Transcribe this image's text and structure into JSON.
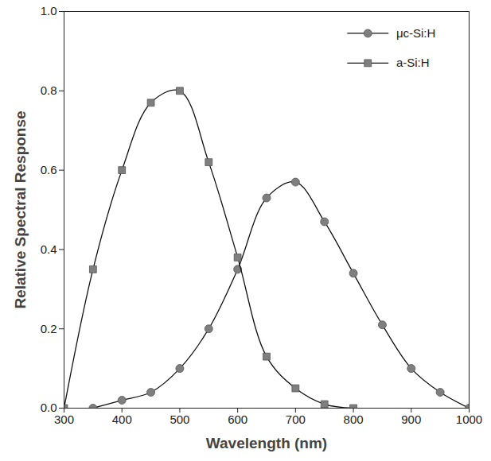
{
  "chart_data": {
    "type": "line",
    "x_label": "Wavelength (nm)",
    "y_label": "Relative Spectral Response",
    "x": [
      300,
      350,
      400,
      450,
      500,
      550,
      600,
      650,
      700,
      750,
      800,
      850,
      900,
      950,
      1000
    ],
    "series": [
      {
        "name": "μc-Si:H",
        "color": "#7f7f7f",
        "marker": "circle",
        "line_style": "solid",
        "values": [
          null,
          0.0,
          0.02,
          0.04,
          0.1,
          0.2,
          0.35,
          0.53,
          0.57,
          0.47,
          0.34,
          0.21,
          0.1,
          0.04,
          0.0
        ]
      },
      {
        "name": "a-Si:H",
        "color": "#7f7f7f",
        "marker": "square",
        "line_style": "solid",
        "values": [
          0.0,
          0.35,
          0.6,
          0.77,
          0.8,
          0.62,
          0.38,
          0.13,
          0.05,
          0.01,
          0.0,
          null,
          null,
          null,
          null
        ]
      }
    ],
    "xlim": [
      300,
      1000
    ],
    "xticks": [
      300,
      400,
      500,
      600,
      700,
      800,
      900,
      1000
    ],
    "ylim": [
      0,
      1.0
    ],
    "yticks": [
      {
        "value": 0,
        "label": "0.0"
      },
      {
        "value": 0.2,
        "label": "0.2"
      },
      {
        "value": 0.4,
        "label": "0.4"
      },
      {
        "value": 0.6,
        "label": "0.6"
      },
      {
        "value": 0.8,
        "label": "0.8"
      },
      {
        "value": 1.0,
        "label": "1.0"
      }
    ],
    "legend": "top-right",
    "grid": false
  }
}
